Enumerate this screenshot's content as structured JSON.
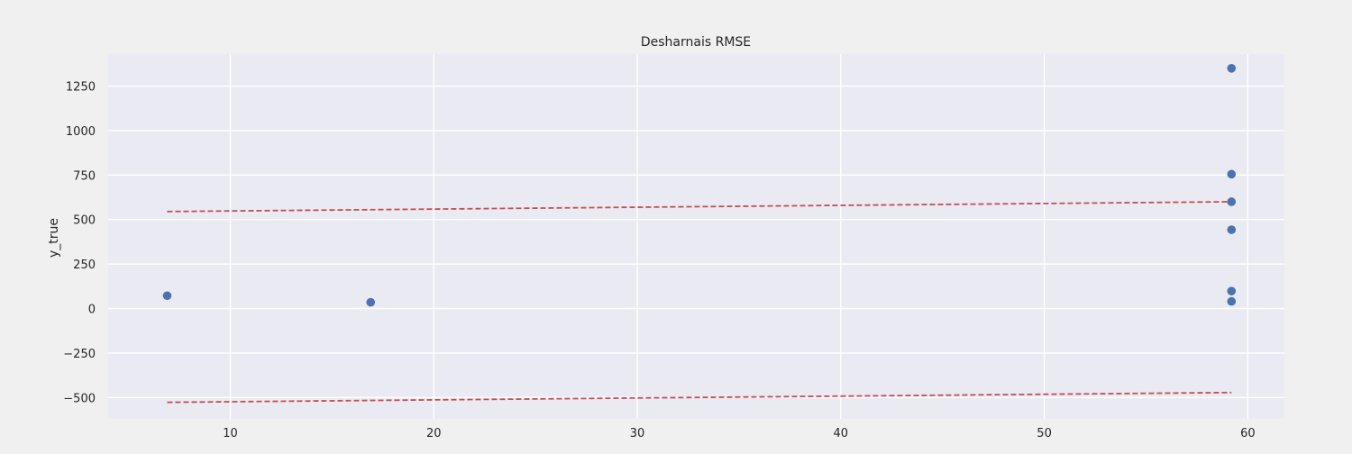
{
  "chart_data": {
    "type": "scatter",
    "title": "Desharnais RMSE",
    "xlabel": "",
    "ylabel": "y_true",
    "xlim": [
      4,
      61.8
    ],
    "ylim": [
      -620,
      1430
    ],
    "grid": true,
    "x_ticks": [
      10,
      20,
      30,
      40,
      50,
      60
    ],
    "y_ticks": [
      -500,
      -250,
      0,
      250,
      500,
      750,
      1000,
      1250
    ],
    "x_tick_labels": [
      "10",
      "20",
      "30",
      "40",
      "50",
      "60"
    ],
    "y_tick_labels": [
      "−500",
      "−250",
      "0",
      "250",
      "500",
      "750",
      "1000",
      "1250"
    ],
    "points": [
      {
        "x": 6.9,
        "y": 72
      },
      {
        "x": 16.9,
        "y": 35
      },
      {
        "x": 59.2,
        "y": 1350
      },
      {
        "x": 59.2,
        "y": 755
      },
      {
        "x": 59.2,
        "y": 600
      },
      {
        "x": 59.2,
        "y": 443
      },
      {
        "x": 59.2,
        "y": 98
      },
      {
        "x": 59.2,
        "y": 40
      }
    ],
    "bound_lines": [
      {
        "x": [
          6.9,
          59.2
        ],
        "y": [
          545,
          600
        ]
      },
      {
        "x": [
          6.9,
          59.2
        ],
        "y": [
          -527,
          -472
        ]
      }
    ],
    "colors": {
      "background": "#f0f0f0",
      "plot_area": "#eaeaf2",
      "grid": "#ffffff",
      "points": "#4c72b0",
      "bounds": "#c44e52"
    }
  }
}
